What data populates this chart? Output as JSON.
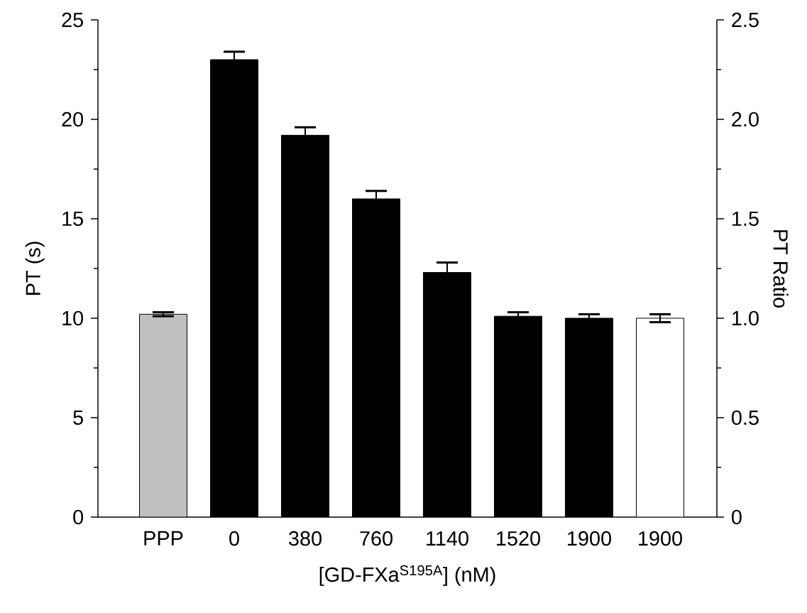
{
  "chart_data": {
    "type": "bar",
    "categories": [
      "PPP",
      "0",
      "380",
      "760",
      "1140",
      "1520",
      "1900",
      "1900"
    ],
    "values": [
      10.2,
      23.0,
      19.2,
      16.0,
      12.3,
      10.1,
      10.0,
      10.0
    ],
    "errors": [
      0.1,
      0.4,
      0.4,
      0.4,
      0.5,
      0.2,
      0.2,
      0.2
    ],
    "colors": [
      "#c0c0c0",
      "#000000",
      "#000000",
      "#000000",
      "#000000",
      "#000000",
      "#000000",
      "#ffffff"
    ],
    "xlabel": "[GD-FXa$^{S195A}$] (nM)",
    "ylabel": "PT (s)",
    "y2label": "PT Ratio",
    "ylim": [
      0,
      25
    ],
    "yticks": [
      0,
      5,
      10,
      15,
      20,
      25
    ],
    "y2lim": [
      0,
      2.5
    ],
    "y2ticks": [
      0,
      {
        "value": 0.5,
        "label": "0.5"
      },
      {
        "value": 1.0,
        "label": "1.0"
      },
      {
        "value": 1.5,
        "label": "1.5"
      },
      {
        "value": 2.0,
        "label": "2.0"
      },
      {
        "value": 2.5,
        "label": "2.5"
      }
    ]
  }
}
